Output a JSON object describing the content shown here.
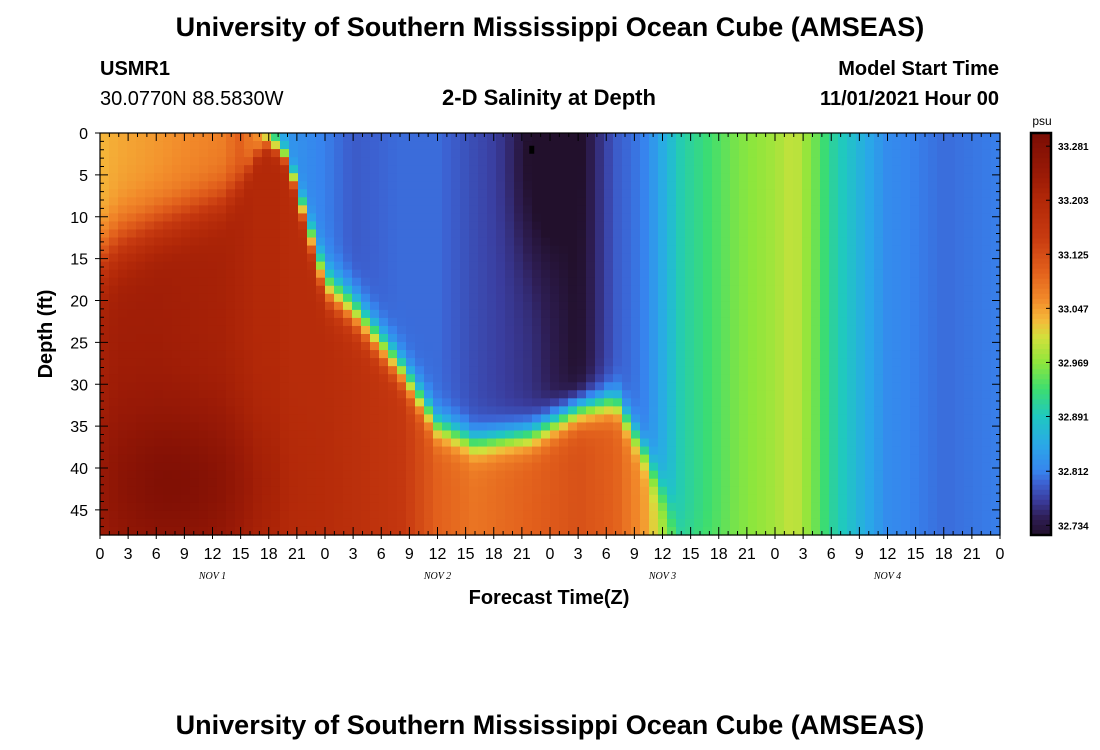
{
  "chart_data": {
    "type": "heatmap",
    "title": "University of Southern Mississippi Ocean Cube (AMSEAS)",
    "footer_title": "University of Southern Mississippi Ocean Cube (AMSEAS)",
    "station": "USMR1",
    "location": "30.0770N  88.5830W",
    "subtitle": "2-D Salinity at Depth",
    "model_start_label": "Model Start Time",
    "model_start_value": "11/01/2021 Hour 00",
    "xlabel": "Forecast Time(Z)",
    "ylabel": "Depth (ft)",
    "xlim": [
      0,
      96
    ],
    "ylim": [
      0,
      48
    ],
    "x_tick_labels": [
      "0",
      "3",
      "6",
      "9",
      "12",
      "15",
      "18",
      "21",
      "0",
      "3",
      "6",
      "9",
      "12",
      "15",
      "18",
      "21",
      "0",
      "3",
      "6",
      "9",
      "12",
      "15",
      "18",
      "21",
      "0",
      "3",
      "6",
      "9",
      "12",
      "15",
      "18",
      "21",
      "0"
    ],
    "y_ticks": [
      0,
      5,
      10,
      15,
      20,
      25,
      30,
      35,
      40,
      45
    ],
    "y_tick_labels": [
      "0",
      "5",
      "10",
      "15",
      "20",
      "25",
      "30",
      "35",
      "40",
      "45"
    ],
    "day_labels": [
      {
        "text": "NOV 1",
        "hour": 12
      },
      {
        "text": "NOV 2",
        "hour": 36
      },
      {
        "text": "NOV 3",
        "hour": 60
      },
      {
        "text": "NOV 4",
        "hour": 84
      }
    ],
    "colorbar": {
      "unit": "psu",
      "min": 32.72,
      "max": 33.3,
      "tick_values": [
        33.281,
        33.203,
        33.125,
        33.047,
        32.969,
        32.891,
        32.812,
        32.734
      ],
      "tick_labels": [
        "33.281",
        "33.203",
        "33.125",
        "33.047",
        "32.969",
        "32.891",
        "32.812",
        "32.734"
      ]
    },
    "colormap": [
      [
        32.72,
        "#22102c"
      ],
      [
        32.745,
        "#2e1e55"
      ],
      [
        32.77,
        "#3a3d9e"
      ],
      [
        32.795,
        "#3c62d2"
      ],
      [
        32.812,
        "#3784ee"
      ],
      [
        32.85,
        "#2aa8e8"
      ],
      [
        32.891,
        "#1fc8c0"
      ],
      [
        32.93,
        "#3ddd70"
      ],
      [
        32.969,
        "#8fe63c"
      ],
      [
        33.005,
        "#d2e03c"
      ],
      [
        33.03,
        "#f5b83a"
      ],
      [
        33.06,
        "#f28a2a"
      ],
      [
        33.1,
        "#e2601c"
      ],
      [
        33.15,
        "#c73a10"
      ],
      [
        33.203,
        "#b22808"
      ],
      [
        33.24,
        "#9a1a06"
      ],
      [
        33.3,
        "#7a0d04"
      ]
    ],
    "field": {
      "description_units": "salinity psu vs forecast hour (x) and depth ft (y)",
      "breakpoints_hour": [
        0,
        2,
        6,
        13,
        15,
        17,
        18,
        19,
        20,
        24,
        27,
        32,
        36,
        40,
        46,
        51,
        55,
        58,
        62,
        68,
        72,
        74,
        76,
        78,
        84,
        90,
        96
      ],
      "surface_psu": [
        33.03,
        33.04,
        33.05,
        33.07,
        33.1,
        33.05,
        32.95,
        32.88,
        32.83,
        32.81,
        32.79,
        32.8,
        32.8,
        32.78,
        32.76,
        32.72,
        32.79,
        32.81,
        32.9,
        32.96,
        32.98,
        33.0,
        32.96,
        32.91,
        32.82,
        32.8,
        32.81
      ],
      "deep_psu": [
        33.22,
        33.23,
        33.23,
        33.22,
        33.21,
        33.2,
        33.2,
        33.2,
        33.19,
        33.19,
        33.18,
        33.16,
        33.1,
        33.08,
        33.1,
        33.12,
        33.1,
        33.05,
        32.92,
        32.96,
        32.98,
        33.0,
        32.96,
        32.91,
        32.82,
        32.8,
        32.81
      ],
      "halocline_depth_ft": [
        15,
        13,
        11,
        8,
        6,
        2,
        1,
        2,
        3,
        18,
        21,
        28,
        35,
        37,
        36,
        33,
        32,
        38,
        48,
        48,
        48,
        48,
        48,
        48,
        48,
        48,
        48
      ],
      "transition_width_ft": [
        8,
        8,
        7,
        6,
        4,
        2,
        2,
        2,
        2,
        5,
        5,
        4,
        4,
        4,
        4,
        4,
        4,
        4,
        6,
        6,
        6,
        6,
        6,
        6,
        6,
        6,
        6
      ]
    },
    "deep_core": {
      "hour": 8.5,
      "depth_ft": 42,
      "psu_bonus": 0.06,
      "radius_hour": 9,
      "radius_ft": 9
    },
    "fresh_plume": {
      "hour": 47,
      "depth_ft": 3,
      "psu_drop": 0.05,
      "radius_hour": 3,
      "radius_ft": 12
    },
    "marker": {
      "hour": 46,
      "depth_ft": 2
    }
  }
}
